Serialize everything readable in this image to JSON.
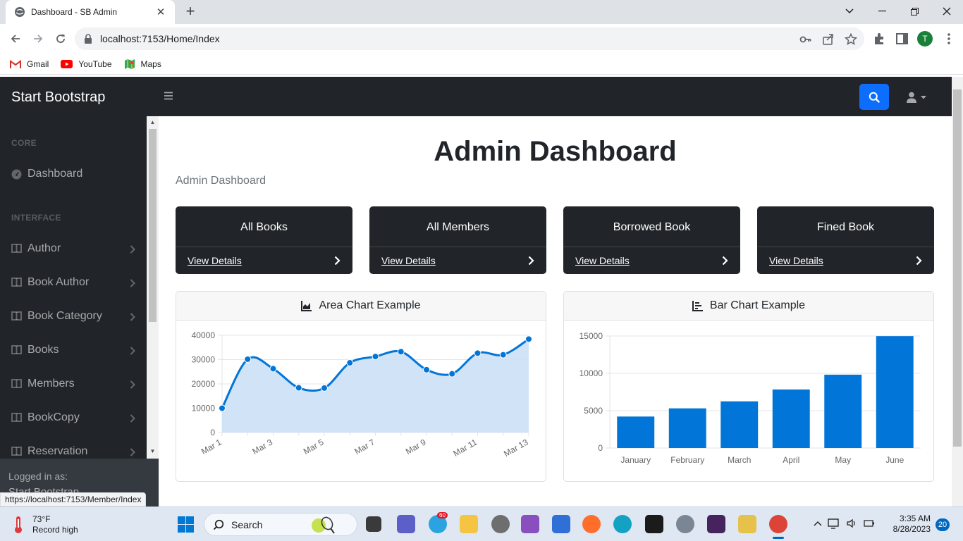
{
  "browser": {
    "tab_title": "Dashboard - SB Admin",
    "url": "localhost:7153/Home/Index",
    "profile_initial": "T",
    "bookmarks": [
      {
        "label": "Gmail",
        "icon": "gmail-icon"
      },
      {
        "label": "YouTube",
        "icon": "youtube-icon"
      },
      {
        "label": "Maps",
        "icon": "maps-icon"
      }
    ],
    "status_url": "https://localhost:7153/Member/Index"
  },
  "topnav": {
    "brand": "Start Bootstrap"
  },
  "sidebar": {
    "core_heading": "CORE",
    "dashboard_label": "Dashboard",
    "interface_heading": "INTERFACE",
    "items": [
      {
        "label": "Author"
      },
      {
        "label": "Book Author"
      },
      {
        "label": "Book Category"
      },
      {
        "label": "Books"
      },
      {
        "label": "Members"
      },
      {
        "label": "BookCopy"
      },
      {
        "label": "Reservation"
      }
    ],
    "footer_label": "Logged in as:",
    "footer_user": "Start Bootstrap"
  },
  "main": {
    "title": "Admin Dashboard",
    "breadcrumb": "Admin Dashboard",
    "cards": [
      {
        "title": "All Books",
        "link": "View Details"
      },
      {
        "title": "All Members",
        "link": "View Details"
      },
      {
        "title": "Borrowed Book",
        "link": "View Details"
      },
      {
        "title": "Fined Book",
        "link": "View Details"
      }
    ],
    "area_chart_title": "Area Chart Example",
    "bar_chart_title": "Bar Chart Example"
  },
  "colors": {
    "dark": "#212529",
    "primary": "#0d6efd",
    "chart_blue": "#0275d8",
    "area_fill": "#cce0f5"
  },
  "chart_data": [
    {
      "type": "area",
      "title": "Area Chart Example",
      "x": [
        "Mar 1",
        "Mar 2",
        "Mar 3",
        "Mar 4",
        "Mar 5",
        "Mar 6",
        "Mar 7",
        "Mar 8",
        "Mar 9",
        "Mar 10",
        "Mar 11",
        "Mar 12",
        "Mar 13"
      ],
      "x_tick_labels": [
        "Mar 1",
        "Mar 3",
        "Mar 5",
        "Mar 7",
        "Mar 9",
        "Mar 11",
        "Mar 13"
      ],
      "values": [
        10000,
        30162,
        26263,
        18394,
        18287,
        28682,
        31274,
        33259,
        25849,
        24159,
        32651,
        31984,
        38451
      ],
      "ylim": [
        0,
        40000
      ],
      "y_ticks": [
        0,
        10000,
        20000,
        30000,
        40000
      ],
      "grid": true
    },
    {
      "type": "bar",
      "title": "Bar Chart Example",
      "categories": [
        "January",
        "February",
        "March",
        "April",
        "May",
        "June"
      ],
      "values": [
        4215,
        5312,
        6251,
        7841,
        9821,
        14984
      ],
      "ylim": [
        0,
        15000
      ],
      "y_ticks": [
        0,
        5000,
        10000,
        15000
      ],
      "grid": true
    }
  ],
  "taskbar": {
    "weather_temp": "73°F",
    "weather_desc": "Record high",
    "search_placeholder": "Search",
    "telegram_badge": "60",
    "time": "3:35 AM",
    "date": "8/28/2023",
    "notification_count": "20"
  }
}
